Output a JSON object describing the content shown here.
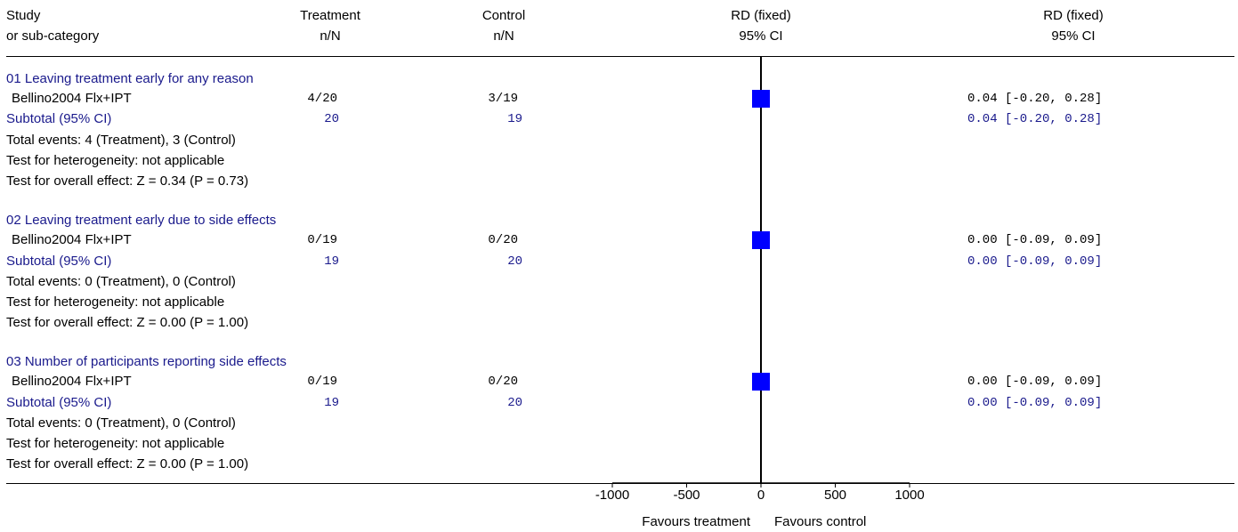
{
  "header": {
    "study_line1": "Study",
    "study_line2": "or sub-category",
    "treatment_line1": "Treatment",
    "treatment_line2": "n/N",
    "control_line1": "Control",
    "control_line2": "n/N",
    "plot_line1": "RD (fixed)",
    "plot_line2": "95% CI",
    "est_line1": "RD (fixed)",
    "est_line2": "95% CI"
  },
  "groups": [
    {
      "title": "01 Leaving treatment early for any reason",
      "study": {
        "name": "Bellino2004 Flx+IPT",
        "treatment": "4/20",
        "control": "3/19",
        "ci_text": "0.04 [-0.20, 0.28]"
      },
      "subtotal": {
        "label": "Subtotal (95% CI)",
        "treatment": "20",
        "control": "19",
        "ci_text": "0.04 [-0.20, 0.28]"
      },
      "notes": [
        "Total events: 4 (Treatment), 3 (Control)",
        "Test for heterogeneity: not applicable",
        "Test for overall effect: Z = 0.34 (P = 0.73)"
      ]
    },
    {
      "title": "02 Leaving treatment early due to side effects",
      "study": {
        "name": "Bellino2004 Flx+IPT",
        "treatment": "0/19",
        "control": "0/20",
        "ci_text": "0.00 [-0.09, 0.09]"
      },
      "subtotal": {
        "label": "Subtotal (95% CI)",
        "treatment": "19",
        "control": "20",
        "ci_text": "0.00 [-0.09, 0.09]"
      },
      "notes": [
        "Total events: 0 (Treatment), 0 (Control)",
        "Test for heterogeneity: not applicable",
        "Test for overall effect: Z = 0.00 (P = 1.00)"
      ]
    },
    {
      "title": "03 Number of participants reporting side effects",
      "study": {
        "name": "Bellino2004 Flx+IPT",
        "treatment": "0/19",
        "control": "0/20",
        "ci_text": "0.00 [-0.09, 0.09]"
      },
      "subtotal": {
        "label": "Subtotal (95% CI)",
        "treatment": "19",
        "control": "20",
        "ci_text": "0.00 [-0.09, 0.09]"
      },
      "notes": [
        "Total events: 0 (Treatment), 0 (Control)",
        "Test for heterogeneity: not applicable",
        "Test for overall effect: Z = 0.00 (P = 1.00)"
      ]
    }
  ],
  "axis": {
    "favours_left": "Favours treatment",
    "favours_right": "Favours control"
  },
  "chart_data": {
    "type": "scatter",
    "title": "",
    "xlabel": "",
    "ylabel": "",
    "xlim": [
      -1000,
      1000
    ],
    "x_ticks": [
      -1000,
      -500,
      0,
      500,
      1000
    ],
    "x_tick_labels": [
      "-1000",
      "-500",
      "0",
      "500",
      "1000"
    ],
    "null_line": 0,
    "series": [
      {
        "name": "Bellino2004 Flx+IPT",
        "points": [
          {
            "group": "01",
            "rd": 0.04,
            "ci_low": -0.2,
            "ci_high": 0.28
          },
          {
            "group": "02",
            "rd": 0.0,
            "ci_low": -0.09,
            "ci_high": 0.09
          },
          {
            "group": "03",
            "rd": 0.0,
            "ci_low": -0.09,
            "ci_high": 0.09
          }
        ]
      }
    ],
    "subtotals": [
      {
        "group": "01",
        "rd": 0.04,
        "ci_low": -0.2,
        "ci_high": 0.28
      },
      {
        "group": "02",
        "rd": 0.0,
        "ci_low": -0.09,
        "ci_high": 0.09
      },
      {
        "group": "03",
        "rd": 0.0,
        "ci_low": -0.09,
        "ci_high": 0.09
      }
    ],
    "colors": {
      "marker": "#0000ff",
      "group_title": "#1a1a8c"
    },
    "grid": false
  }
}
